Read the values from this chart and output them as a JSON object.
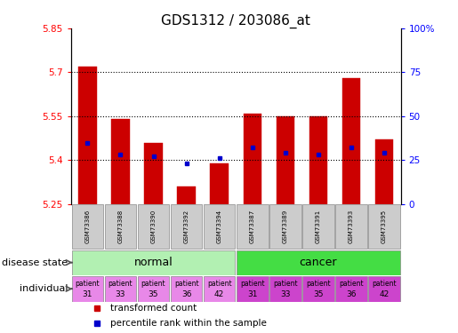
{
  "title": "GDS1312 / 203086_at",
  "samples": [
    "GSM73386",
    "GSM73388",
    "GSM73390",
    "GSM73392",
    "GSM73394",
    "GSM73387",
    "GSM73389",
    "GSM73391",
    "GSM73393",
    "GSM73395"
  ],
  "bar_values": [
    5.72,
    5.54,
    5.46,
    5.31,
    5.39,
    5.56,
    5.55,
    5.55,
    5.68,
    5.47
  ],
  "percentile_values": [
    35,
    28,
    27,
    23,
    26,
    32,
    29,
    28,
    32,
    29
  ],
  "bar_bottom": 5.25,
  "ylim": [
    5.25,
    5.85
  ],
  "y_ticks": [
    5.25,
    5.4,
    5.55,
    5.7,
    5.85
  ],
  "y_tick_labels": [
    "5.25",
    "5.4",
    "5.55",
    "5.7",
    "5.85"
  ],
  "right_yticks": [
    0,
    25,
    50,
    75,
    100
  ],
  "right_ytick_labels": [
    "0",
    "25",
    "50",
    "75",
    "100%"
  ],
  "dotted_lines": [
    5.4,
    5.55,
    5.7
  ],
  "bar_color": "#cc0000",
  "percentile_color": "#0000cc",
  "disease_groups": [
    {
      "label": "normal",
      "start": 0,
      "end": 5,
      "color": "#b2f0b2"
    },
    {
      "label": "cancer",
      "start": 5,
      "end": 10,
      "color": "#44dd44"
    }
  ],
  "individuals": [
    "patient\n31",
    "patient\n33",
    "patient\n35",
    "patient\n36",
    "patient\n42",
    "patient\n31",
    "patient\n33",
    "patient\n35",
    "patient\n36",
    "patient\n42"
  ],
  "individual_bg_normal": "#e888e8",
  "individual_bg_cancer": "#cc44cc",
  "sample_bg_color": "#cccccc",
  "legend_items": [
    {
      "label": "transformed count",
      "color": "#cc0000"
    },
    {
      "label": "percentile rank within the sample",
      "color": "#0000cc"
    }
  ],
  "disease_label": "disease state",
  "individual_label": "individual",
  "title_fontsize": 11,
  "bar_width": 0.55
}
